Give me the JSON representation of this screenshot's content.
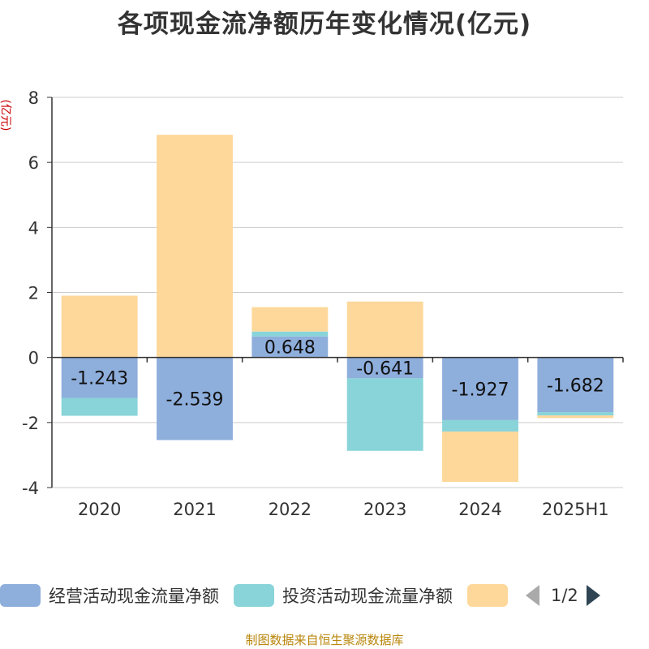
{
  "title": "各项现金流净额历年变化情况(亿元)",
  "unit_label": "(亿元)",
  "source": "制图数据来自恒生聚源数据库",
  "legend": {
    "items": [
      {
        "label": "经营活动现金流量净额",
        "color": "#8eaedc"
      },
      {
        "label": "投资活动现金流量净额",
        "color": "#88d4d9"
      },
      {
        "label": "",
        "color": "#fdd89a"
      }
    ],
    "page": "1/2"
  },
  "chart_data": {
    "type": "bar",
    "stacked": true,
    "categories": [
      "2020",
      "2021",
      "2022",
      "2023",
      "2024",
      "2025H1"
    ],
    "ylim": [
      -4,
      8
    ],
    "yticks": [
      -4,
      -2,
      0,
      2,
      4,
      6,
      8
    ],
    "grid": true,
    "legend_position": "bottom",
    "series": [
      {
        "name": "经营活动现金流量净额",
        "color": "#8eaedc",
        "values": [
          -1.243,
          -2.539,
          0.648,
          -0.641,
          -1.927,
          -1.682
        ],
        "labels": [
          "-1.243",
          "-2.539",
          "0.648",
          "-0.641",
          "-1.927",
          "-1.682"
        ]
      },
      {
        "name": "投资活动现金流量净额",
        "color": "#88d4d9",
        "values": [
          -0.55,
          0.0,
          0.15,
          -2.23,
          -0.35,
          -0.1
        ]
      },
      {
        "color": "#fdd89a",
        "values": [
          1.9,
          6.85,
          0.75,
          1.72,
          -1.55,
          -0.08
        ]
      }
    ]
  }
}
